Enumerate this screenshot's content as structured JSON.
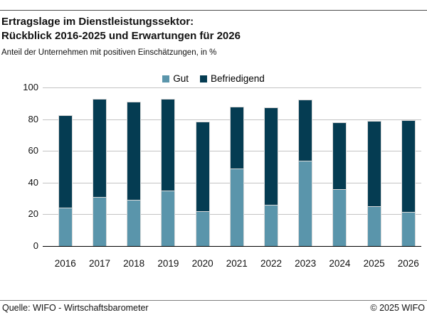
{
  "header": {
    "title_line1": "Ertragslage im Dienstleistungssektor:",
    "title_line2": "Rückblick 2016-2025 und Erwartungen für 2026",
    "subtitle": "Anteil der Unternehmen mit positiven Einschätzungen, in %"
  },
  "legend": {
    "items": [
      {
        "label": "Gut",
        "color": "#5A95AB"
      },
      {
        "label": "Befriedigend",
        "color": "#053C52"
      }
    ]
  },
  "chart_data": {
    "type": "bar",
    "stacked": true,
    "title": "Ertragslage im Dienstleistungssektor: Rückblick 2016-2025 und Erwartungen für 2026",
    "subtitle": "Anteil der Unternehmen mit positiven Einschätzungen, in %",
    "categories": [
      "2016",
      "2017",
      "2018",
      "2019",
      "2020",
      "2021",
      "2022",
      "2023",
      "2024",
      "2025",
      "2026"
    ],
    "series": [
      {
        "name": "Gut",
        "color": "#5A95AB",
        "values": [
          24,
          31,
          29,
          35,
          22,
          49,
          26,
          54,
          36,
          25,
          21.5
        ]
      },
      {
        "name": "Befriedigend",
        "color": "#053C52",
        "values": [
          58.5,
          62,
          62,
          58,
          56.5,
          39,
          61.5,
          38.5,
          42,
          54,
          58
        ]
      }
    ],
    "totals": [
      82.5,
      93,
      91,
      93,
      78.5,
      88,
      87.5,
      92.5,
      78,
      79,
      79.5
    ],
    "xlabel": "",
    "ylabel": "",
    "ylim": [
      0,
      100
    ],
    "yticks": [
      0,
      20,
      40,
      60,
      80,
      100
    ],
    "grid": true,
    "legend_position": "top-center",
    "gridline_color": "#c3c3c3",
    "axis_color": "#000000"
  },
  "footer": {
    "source": "Quelle: WIFO - Wirtschaftsbarometer",
    "copyright": "© 2025 WIFO"
  }
}
